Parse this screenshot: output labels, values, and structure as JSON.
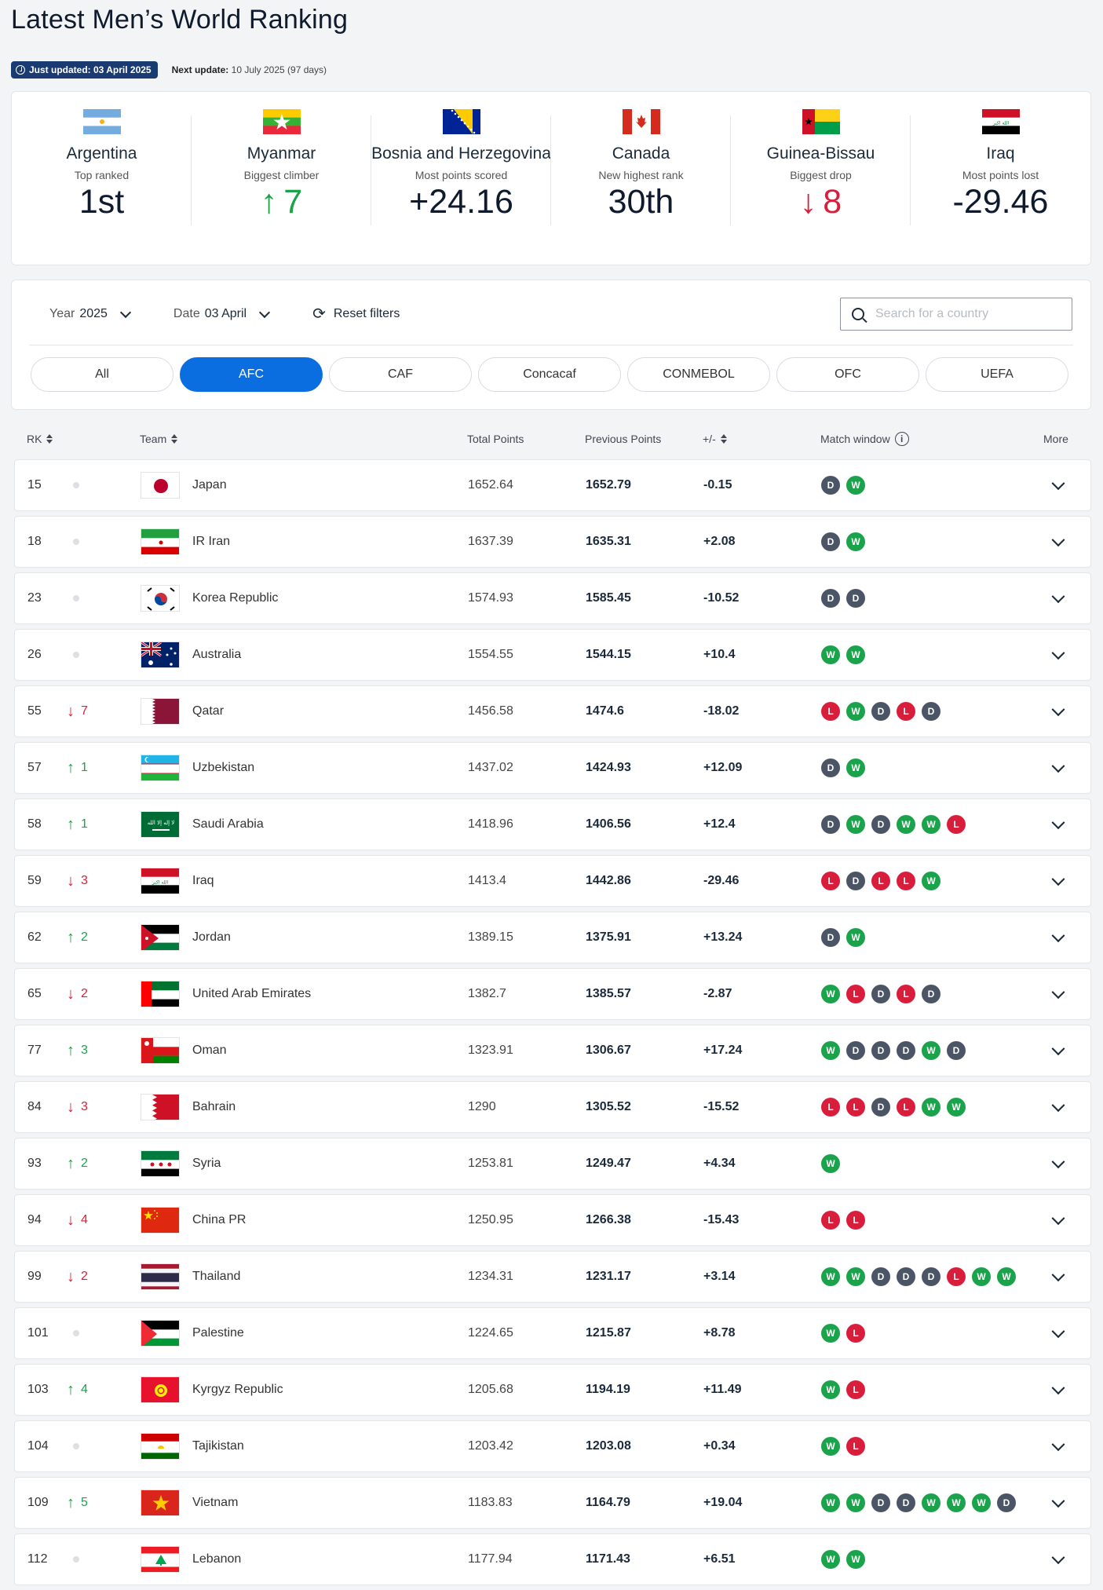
{
  "page": {
    "title": "Latest Men’s World Ranking"
  },
  "updates": {
    "just_updated": "Just updated: 03 April 2025",
    "next_update_label": "Next update:",
    "next_update_value": "10 July 2025 (97 days)"
  },
  "stats": [
    {
      "country": "Argentina",
      "desc": "Top ranked",
      "value": "1st",
      "icon": "",
      "flag": "argentina"
    },
    {
      "country": "Myanmar",
      "desc": "Biggest climber",
      "value": "7",
      "icon": "↑",
      "flag": "myanmar"
    },
    {
      "country": "Bosnia and Herzegovina",
      "desc": "Most points scored",
      "value": "+24.16",
      "icon": "",
      "flag": "bosnia"
    },
    {
      "country": "Canada",
      "desc": "New highest rank",
      "value": "30th",
      "icon": "",
      "flag": "canada"
    },
    {
      "country": "Guinea-Bissau",
      "desc": "Biggest drop",
      "value": "8",
      "icon": "↓",
      "flag": "guinea-bissau"
    },
    {
      "country": "Iraq",
      "desc": "Most points lost",
      "value": "-29.46",
      "icon": "",
      "flag": "iraq"
    }
  ],
  "filters": {
    "year_label": "Year",
    "year_value": "2025",
    "date_label": "Date",
    "date_value": "03 April",
    "reset_label": "Reset filters",
    "search_placeholder": "Search for a country",
    "search_value": ""
  },
  "confederations": [
    {
      "label": "All",
      "active": false
    },
    {
      "label": "AFC",
      "active": true
    },
    {
      "label": "CAF",
      "active": false
    },
    {
      "label": "Concacaf",
      "active": false
    },
    {
      "label": "CONMEBOL",
      "active": false
    },
    {
      "label": "OFC",
      "active": false
    },
    {
      "label": "UEFA",
      "active": false
    }
  ],
  "table": {
    "headers": {
      "rk": "RK",
      "team": "Team",
      "total": "Total Points",
      "previous": "Previous Points",
      "diff": "+/-",
      "window": "Match window",
      "more": "More"
    },
    "rows": [
      {
        "rk": "15",
        "move": "",
        "dir": "none",
        "team": "Japan",
        "flag": "japan",
        "total": "1652.64",
        "prev": "1652.79",
        "diff": "-0.15",
        "results": [
          "D",
          "W"
        ]
      },
      {
        "rk": "18",
        "move": "",
        "dir": "none",
        "team": "IR Iran",
        "flag": "iran",
        "total": "1637.39",
        "prev": "1635.31",
        "diff": "+2.08",
        "results": [
          "D",
          "W"
        ]
      },
      {
        "rk": "23",
        "move": "",
        "dir": "none",
        "team": "Korea Republic",
        "flag": "korea",
        "total": "1574.93",
        "prev": "1585.45",
        "diff": "-10.52",
        "results": [
          "D",
          "D"
        ]
      },
      {
        "rk": "26",
        "move": "",
        "dir": "none",
        "team": "Australia",
        "flag": "australia",
        "total": "1554.55",
        "prev": "1544.15",
        "diff": "+10.4",
        "results": [
          "W",
          "W"
        ]
      },
      {
        "rk": "55",
        "move": "7",
        "dir": "down",
        "team": "Qatar",
        "flag": "qatar",
        "total": "1456.58",
        "prev": "1474.6",
        "diff": "-18.02",
        "results": [
          "L",
          "W",
          "D",
          "L",
          "D"
        ]
      },
      {
        "rk": "57",
        "move": "1",
        "dir": "up",
        "team": "Uzbekistan",
        "flag": "uzbekistan",
        "total": "1437.02",
        "prev": "1424.93",
        "diff": "+12.09",
        "results": [
          "D",
          "W"
        ]
      },
      {
        "rk": "58",
        "move": "1",
        "dir": "up",
        "team": "Saudi Arabia",
        "flag": "saudi",
        "total": "1418.96",
        "prev": "1406.56",
        "diff": "+12.4",
        "results": [
          "D",
          "W",
          "D",
          "W",
          "W",
          "L"
        ]
      },
      {
        "rk": "59",
        "move": "3",
        "dir": "down",
        "team": "Iraq",
        "flag": "iraq",
        "total": "1413.4",
        "prev": "1442.86",
        "diff": "-29.46",
        "results": [
          "L",
          "D",
          "L",
          "L",
          "W"
        ]
      },
      {
        "rk": "62",
        "move": "2",
        "dir": "up",
        "team": "Jordan",
        "flag": "jordan",
        "total": "1389.15",
        "prev": "1375.91",
        "diff": "+13.24",
        "results": [
          "D",
          "W"
        ]
      },
      {
        "rk": "65",
        "move": "2",
        "dir": "down",
        "team": "United Arab Emirates",
        "flag": "uae",
        "total": "1382.7",
        "prev": "1385.57",
        "diff": "-2.87",
        "results": [
          "W",
          "L",
          "D",
          "L",
          "D"
        ]
      },
      {
        "rk": "77",
        "move": "3",
        "dir": "up",
        "team": "Oman",
        "flag": "oman",
        "total": "1323.91",
        "prev": "1306.67",
        "diff": "+17.24",
        "results": [
          "W",
          "D",
          "D",
          "D",
          "W",
          "D"
        ]
      },
      {
        "rk": "84",
        "move": "3",
        "dir": "down",
        "team": "Bahrain",
        "flag": "bahrain",
        "total": "1290",
        "prev": "1305.52",
        "diff": "-15.52",
        "results": [
          "L",
          "L",
          "D",
          "L",
          "W",
          "W"
        ]
      },
      {
        "rk": "93",
        "move": "2",
        "dir": "up",
        "team": "Syria",
        "flag": "syria",
        "total": "1253.81",
        "prev": "1249.47",
        "diff": "+4.34",
        "results": [
          "W"
        ]
      },
      {
        "rk": "94",
        "move": "4",
        "dir": "down",
        "team": "China PR",
        "flag": "china",
        "total": "1250.95",
        "prev": "1266.38",
        "diff": "-15.43",
        "results": [
          "L",
          "L"
        ]
      },
      {
        "rk": "99",
        "move": "2",
        "dir": "down",
        "team": "Thailand",
        "flag": "thailand",
        "total": "1234.31",
        "prev": "1231.17",
        "diff": "+3.14",
        "results": [
          "W",
          "W",
          "D",
          "D",
          "D",
          "L",
          "W",
          "W"
        ]
      },
      {
        "rk": "101",
        "move": "",
        "dir": "none",
        "team": "Palestine",
        "flag": "palestine",
        "total": "1224.65",
        "prev": "1215.87",
        "diff": "+8.78",
        "results": [
          "W",
          "L"
        ]
      },
      {
        "rk": "103",
        "move": "4",
        "dir": "up",
        "team": "Kyrgyz Republic",
        "flag": "kyrgyz",
        "total": "1205.68",
        "prev": "1194.19",
        "diff": "+11.49",
        "results": [
          "W",
          "L"
        ]
      },
      {
        "rk": "104",
        "move": "",
        "dir": "none",
        "team": "Tajikistan",
        "flag": "tajikistan",
        "total": "1203.42",
        "prev": "1203.08",
        "diff": "+0.34",
        "results": [
          "W",
          "L"
        ]
      },
      {
        "rk": "109",
        "move": "5",
        "dir": "up",
        "team": "Vietnam",
        "flag": "vietnam",
        "total": "1183.83",
        "prev": "1164.79",
        "diff": "+19.04",
        "results": [
          "W",
          "W",
          "D",
          "D",
          "W",
          "W",
          "W",
          "D"
        ]
      },
      {
        "rk": "112",
        "move": "",
        "dir": "none",
        "team": "Lebanon",
        "flag": "lebanon",
        "total": "1177.94",
        "prev": "1171.43",
        "diff": "+6.51",
        "results": [
          "W",
          "W"
        ]
      }
    ]
  },
  "colors": {
    "accent": "#0a6ee0",
    "win": "#1aa34a",
    "loss": "#d81e3a",
    "draw": "#4b5566",
    "badge": "#1a3a72"
  }
}
